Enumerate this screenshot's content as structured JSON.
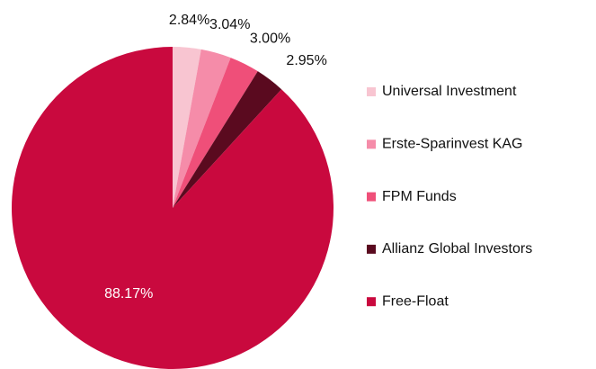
{
  "chart_data": {
    "type": "pie",
    "categories": [
      "Universal Investment",
      "Erste-Sparinvest KAG",
      "FPM Funds",
      "Allianz Global Investors",
      "Free-Float"
    ],
    "values": [
      2.84,
      3.04,
      3.0,
      2.95,
      88.17
    ],
    "value_labels": [
      "2.84%",
      "3.04%",
      "3.00%",
      "2.95%",
      "88.17%"
    ],
    "colors": [
      "#f8c5d1",
      "#f58ca9",
      "#ef4f79",
      "#5a0a1f",
      "#c9093e"
    ],
    "legend": "right"
  }
}
